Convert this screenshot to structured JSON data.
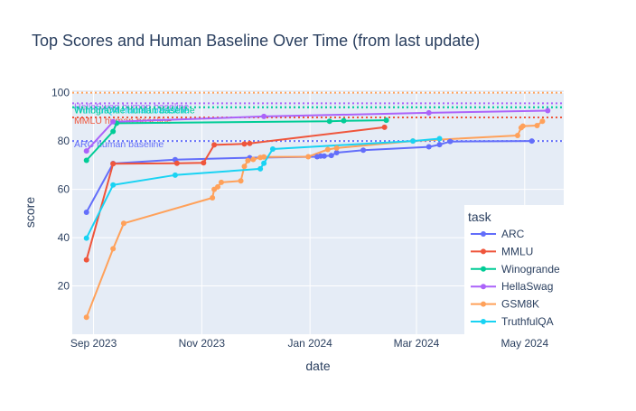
{
  "chart_data": {
    "type": "line",
    "title": "Top Scores and Human Baseline Over Time (from last update)",
    "xlabel": "date",
    "ylabel": "score",
    "xlim": [
      "2023-08-20",
      "2024-05-23"
    ],
    "ylim": [
      0,
      101
    ],
    "x_ticks": [
      {
        "date": "2023-09-01",
        "label": "Sep 2023"
      },
      {
        "date": "2023-11-01",
        "label": "Nov 2023"
      },
      {
        "date": "2024-01-01",
        "label": "Jan 2024"
      },
      {
        "date": "2024-03-01",
        "label": "Mar 2024"
      },
      {
        "date": "2024-05-01",
        "label": "May 2024"
      }
    ],
    "y_ticks": [
      20,
      40,
      60,
      80,
      100
    ],
    "grid": true,
    "legend": {
      "title": "task",
      "placement": "right"
    },
    "series": [
      {
        "name": "ARC",
        "color": "#636efa",
        "points": [
          [
            "2023-08-28",
            50.5
          ],
          [
            "2023-09-12",
            70.7
          ],
          [
            "2023-10-17",
            72.3
          ],
          [
            "2023-11-28",
            73.1
          ],
          [
            "2024-01-05",
            73.5
          ],
          [
            "2024-01-07",
            73.8
          ],
          [
            "2024-01-09",
            73.8
          ],
          [
            "2024-01-13",
            74.0
          ],
          [
            "2024-01-16",
            75.2
          ],
          [
            "2024-01-31",
            76.2
          ],
          [
            "2024-03-08",
            77.6
          ],
          [
            "2024-03-14",
            78.5
          ],
          [
            "2024-03-20",
            79.8
          ],
          [
            "2024-05-05",
            80.0
          ]
        ]
      },
      {
        "name": "MMLU",
        "color": "#ef553b",
        "points": [
          [
            "2023-08-28",
            30.8
          ],
          [
            "2023-09-12",
            70.6
          ],
          [
            "2023-10-18",
            70.8
          ],
          [
            "2023-11-02",
            71.0
          ],
          [
            "2023-11-08",
            78.4
          ],
          [
            "2023-11-25",
            78.8
          ],
          [
            "2023-11-28",
            79.0
          ],
          [
            "2024-02-12",
            85.7
          ]
        ]
      },
      {
        "name": "Winogrande",
        "color": "#00cc96",
        "points": [
          [
            "2023-08-28",
            72.0
          ],
          [
            "2023-09-12",
            84.0
          ],
          [
            "2023-09-14",
            87.4
          ],
          [
            "2024-01-12",
            88.2
          ],
          [
            "2024-01-20",
            88.4
          ],
          [
            "2024-02-13",
            88.6
          ]
        ]
      },
      {
        "name": "HellaSwag",
        "color": "#ab63fa",
        "points": [
          [
            "2023-08-28",
            75.9
          ],
          [
            "2023-09-12",
            88.0
          ],
          [
            "2023-12-06",
            90.2
          ],
          [
            "2024-03-08",
            91.7
          ],
          [
            "2024-05-14",
            92.6
          ]
        ]
      },
      {
        "name": "GSM8K",
        "color": "#ffa15a",
        "points": [
          [
            "2023-08-28",
            7.0
          ],
          [
            "2023-09-12",
            35.4
          ],
          [
            "2023-09-18",
            45.9
          ],
          [
            "2023-11-07",
            56.5
          ],
          [
            "2023-11-08",
            60.0
          ],
          [
            "2023-11-10",
            61.0
          ],
          [
            "2023-11-12",
            62.9
          ],
          [
            "2023-11-23",
            63.5
          ],
          [
            "2023-11-25",
            69.5
          ],
          [
            "2023-11-27",
            71.9
          ],
          [
            "2023-11-30",
            72.4
          ],
          [
            "2023-12-04",
            73.2
          ],
          [
            "2023-12-06",
            73.4
          ],
          [
            "2023-12-31",
            73.5
          ],
          [
            "2024-01-11",
            76.5
          ],
          [
            "2024-01-16",
            77.1
          ],
          [
            "2024-02-28",
            80.0
          ],
          [
            "2024-04-27",
            82.3
          ],
          [
            "2024-04-29",
            85.5
          ],
          [
            "2024-04-30",
            86.2
          ],
          [
            "2024-05-08",
            86.4
          ],
          [
            "2024-05-11",
            88.2
          ]
        ]
      },
      {
        "name": "TruthfulQA",
        "color": "#19d3f3",
        "points": [
          [
            "2023-08-28",
            39.8
          ],
          [
            "2023-09-12",
            61.8
          ],
          [
            "2023-10-17",
            65.9
          ],
          [
            "2023-12-04",
            68.5
          ],
          [
            "2023-12-06",
            70.8
          ],
          [
            "2023-12-11",
            76.7
          ],
          [
            "2024-02-28",
            80.0
          ],
          [
            "2024-03-14",
            81.0
          ]
        ]
      }
    ],
    "baselines": [
      {
        "label": "HellaSwag human baseline",
        "value": 95.6,
        "color": "#ab63fa"
      },
      {
        "label": "TruthfulQA human baseline",
        "value": 94.0,
        "color": "#19d3f3"
      },
      {
        "label": "Winogrande human baseline",
        "value": 94.0,
        "color": "#00cc96"
      },
      {
        "label": "MMLU human baseline",
        "value": 89.8,
        "color": "#ef553b"
      },
      {
        "label": "ARC human baseline",
        "value": 80.0,
        "color": "#636efa"
      },
      {
        "label": "",
        "value": 100,
        "color": "#ffa15a"
      }
    ]
  }
}
